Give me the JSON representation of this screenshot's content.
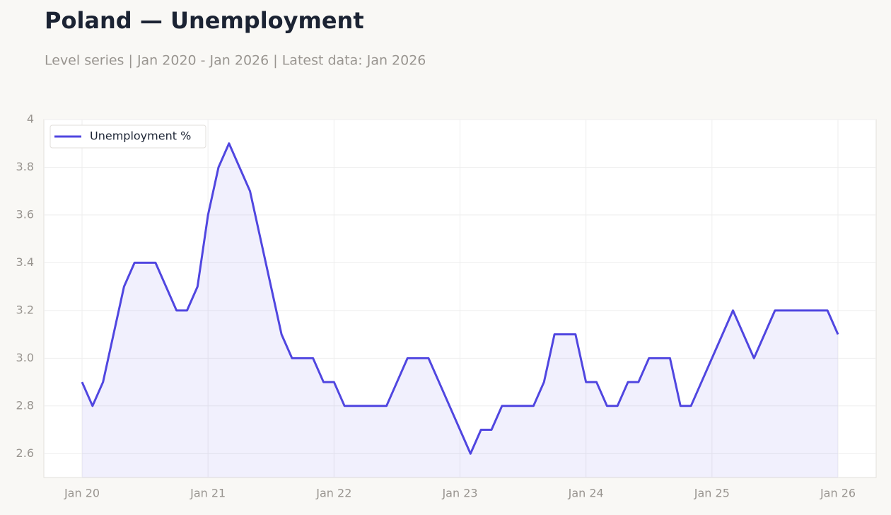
{
  "chart_data": {
    "type": "line",
    "title": "Poland — Unemployment",
    "subtitle": "Level series | Jan 2020 - Jan 2026 | Latest data: Jan 2026",
    "categories": [
      "Jan 20",
      null,
      null,
      null,
      null,
      null,
      null,
      null,
      null,
      null,
      null,
      null,
      "Jan 21",
      null,
      null,
      null,
      null,
      null,
      null,
      null,
      null,
      null,
      null,
      null,
      "Jan 22",
      null,
      null,
      null,
      null,
      null,
      null,
      null,
      null,
      null,
      null,
      null,
      "Jan 23",
      null,
      null,
      null,
      null,
      null,
      null,
      null,
      null,
      null,
      null,
      null,
      "Jan 24",
      null,
      null,
      null,
      null,
      null,
      null,
      null,
      null,
      null,
      null,
      null,
      "Jan 25",
      null,
      null,
      null,
      null,
      null,
      null,
      null,
      null,
      null,
      null,
      null,
      "Jan 26"
    ],
    "series": [
      {
        "name": "Unemployment %",
        "color": "#5046e0",
        "values": [
          2.9,
          2.8,
          2.9,
          3.1,
          3.3,
          3.4,
          3.4,
          3.4,
          3.3,
          3.2,
          3.2,
          3.3,
          3.6,
          3.8,
          3.9,
          3.8,
          3.7,
          3.5,
          3.3,
          3.1,
          3.0,
          3.0,
          3.0,
          2.9,
          2.9,
          2.8,
          2.8,
          2.8,
          2.8,
          2.8,
          2.9,
          3.0,
          3.0,
          3.0,
          2.9,
          2.8,
          2.7,
          2.6,
          2.7,
          2.7,
          2.8,
          2.8,
          2.8,
          2.8,
          2.9,
          3.1,
          3.1,
          3.1,
          2.9,
          2.9,
          2.8,
          2.8,
          2.9,
          2.9,
          3.0,
          3.0,
          3.0,
          2.8,
          2.8,
          2.9,
          3.0,
          3.1,
          3.2,
          3.1,
          3.0,
          3.1,
          3.2,
          3.2,
          3.2,
          3.2,
          3.2,
          3.2,
          3.1
        ]
      }
    ],
    "ylim": [
      2.5,
      4
    ],
    "yticks": [
      {
        "value": 2.6,
        "label": "2.6"
      },
      {
        "value": 2.8,
        "label": "2.8"
      },
      {
        "value": 3,
        "label": "3.0"
      },
      3.2,
      3.4,
      3.6,
      3.8,
      4
    ],
    "grid": true,
    "legend": "upper-left"
  }
}
